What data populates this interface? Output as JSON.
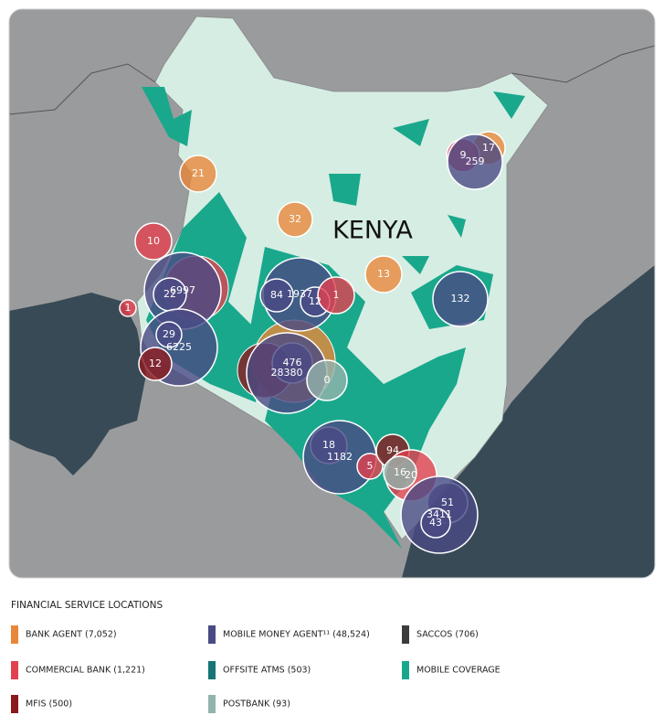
{
  "map": {
    "country_label": "KENYA",
    "markers": [
      {
        "label": "21",
        "color": "#e8873a"
      },
      {
        "label": "32",
        "color": "#e8873a"
      },
      {
        "label": "10",
        "color": "#e2414f"
      },
      {
        "label": "13",
        "color": "#e8873a"
      },
      {
        "label": "1",
        "color": "#e2414f"
      },
      {
        "label": "17",
        "color": "#e8873a"
      },
      {
        "label": "9",
        "color": "#e2414f"
      },
      {
        "label": "259",
        "color": "#4a4a85"
      },
      {
        "label": "6997",
        "color": "#4a4a85"
      },
      {
        "label": "22",
        "color": "#4a4a85"
      },
      {
        "label": "1937",
        "color": "#4a4a85"
      },
      {
        "label": "84",
        "color": "#4a4a85"
      },
      {
        "label": "12",
        "color": "#4a4a85"
      },
      {
        "label": "1",
        "color": "#e2414f"
      },
      {
        "label": "132",
        "color": "#4a4a85"
      },
      {
        "label": "6225",
        "color": "#4a4a85"
      },
      {
        "label": "29",
        "color": "#4a4a85"
      },
      {
        "label": "12",
        "color": "#8b1a1f"
      },
      {
        "label": "476",
        "color": "#4a4a85"
      },
      {
        "label": "28380",
        "color": "#4a4a85"
      },
      {
        "label": "0",
        "color": "#93b3ad"
      },
      {
        "label": "18",
        "color": "#4a4a85"
      },
      {
        "label": "1182",
        "color": "#4a4a85"
      },
      {
        "label": "5",
        "color": "#e2414f"
      },
      {
        "label": "94",
        "color": "#8b1a1f"
      },
      {
        "label": "20",
        "color": "#e2414f"
      },
      {
        "label": "16",
        "color": "#93b3ad"
      },
      {
        "label": "51",
        "color": "#4a4a85"
      },
      {
        "label": "3411",
        "color": "#4a4a85"
      },
      {
        "label": "43",
        "color": "#4a4a85"
      }
    ]
  },
  "legend": {
    "title": "FINANCIAL SERVICE LOCATIONS",
    "items": [
      {
        "label": "BANK AGENT (7,052)",
        "color": "#e8873a"
      },
      {
        "label": "COMMERCIAL BANK (1,221)",
        "color": "#e2414f"
      },
      {
        "label": "MFIS (500)",
        "color": "#8b1a1f"
      },
      {
        "label": "MOBILE MONEY AGENT¹¹ (48,524)",
        "color": "#4a4a85"
      },
      {
        "label": "OFFSITE ATMS (503)",
        "color": "#177477"
      },
      {
        "label": "POSTBANK (93)",
        "color": "#93b3ad"
      },
      {
        "label": "SACCOS (706)",
        "color": "#3c3c3c"
      },
      {
        "label": "MOBILE COVERAGE",
        "color": "#1aa88c"
      }
    ]
  }
}
